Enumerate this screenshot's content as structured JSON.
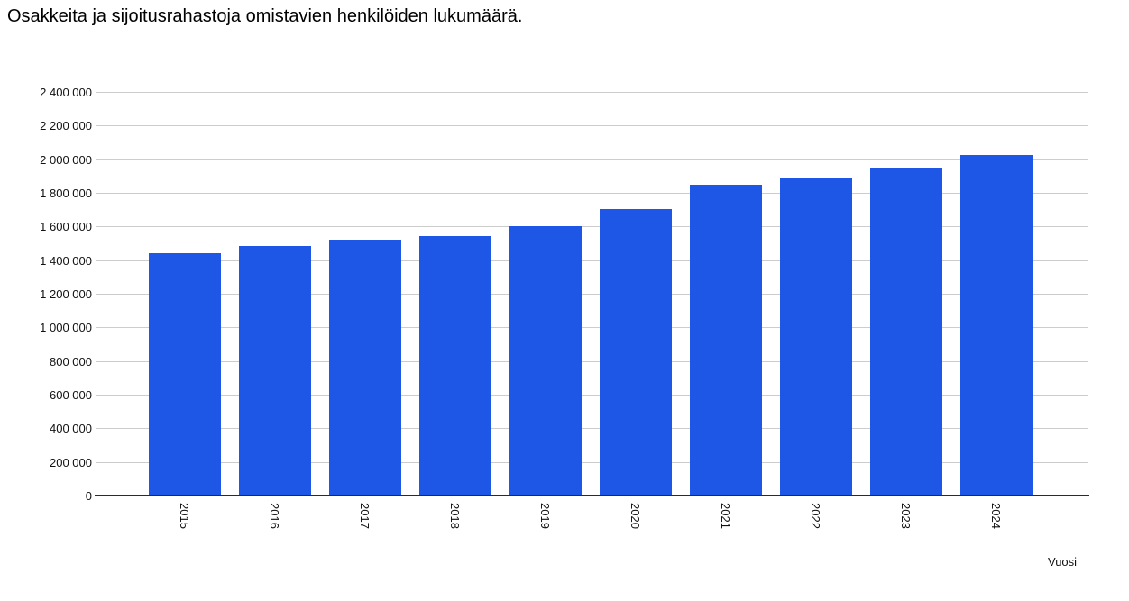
{
  "chart_data": {
    "type": "bar",
    "title": "Osakkeita ja sijoitusrahastoja omistavien henkilöiden lukumäärä.",
    "xlabel": "Vuosi",
    "ylabel": "",
    "categories": [
      "2015",
      "2016",
      "2017",
      "2018",
      "2019",
      "2020",
      "2021",
      "2022",
      "2023",
      "2024"
    ],
    "values": [
      1440000,
      1485000,
      1520000,
      1545000,
      1600000,
      1705000,
      1850000,
      1890000,
      1945000,
      2025000
    ],
    "ylim": [
      0,
      2400000
    ],
    "ytick_step": 200000,
    "ytick_labels": [
      "0",
      "200 000",
      "400 000",
      "600 000",
      "800 000",
      "1 000 000",
      "1 200 000",
      "1 400 000",
      "1 600 000",
      "1 800 000",
      "2 000 000",
      "2 200 000",
      "2 400 000"
    ],
    "grid": true,
    "legend_position": "none",
    "bar_color": "#1E56E5",
    "gridline_color": "#cccccc",
    "axis_color": "#2b2b2b",
    "text_color": "#111111"
  }
}
